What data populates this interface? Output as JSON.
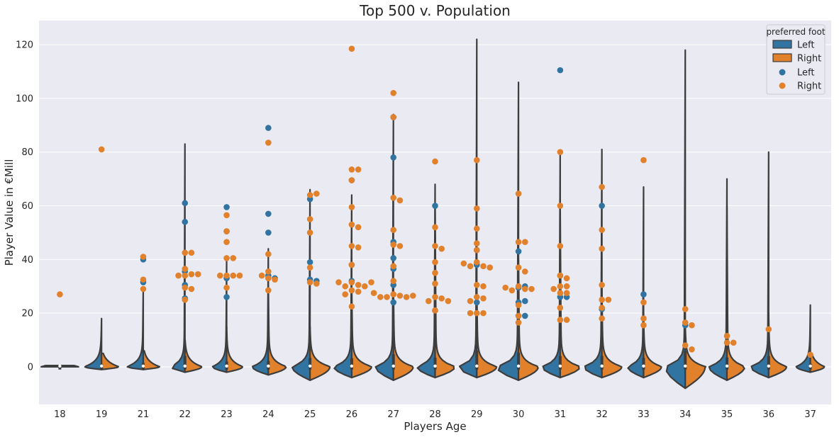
{
  "chart_data": {
    "type": "violin",
    "title": "Top 500 v. Population",
    "xlabel": "Players Age",
    "ylabel": "Player Value in €Mill",
    "categories": [
      "18",
      "19",
      "21",
      "22",
      "23",
      "24",
      "25",
      "26",
      "27",
      "28",
      "29",
      "30",
      "31",
      "32",
      "33",
      "34",
      "35",
      "36",
      "37"
    ],
    "ylim": [
      -14,
      129
    ],
    "yticks": [
      0,
      20,
      40,
      60,
      80,
      100,
      120
    ],
    "grid": true,
    "legend_position": "top-right",
    "legend": {
      "title": "preferred foot",
      "violin_entries": [
        "Left",
        "Right"
      ],
      "point_entries": [
        "Left",
        "Right"
      ]
    },
    "colors": {
      "Left": "#3274a1",
      "Right": "#e1812c",
      "background": "#eaeaf2",
      "grid": "#ffffff",
      "violin_edge": "#3d3d3d"
    },
    "violins": [
      {
        "age": "18",
        "left_max": 0.5,
        "right_max": 0.5,
        "left_w": 0.45,
        "right_w": 0.45,
        "bottom": 0
      },
      {
        "age": "19",
        "left_max": 18,
        "right_max": 5,
        "left_w": 0.42,
        "right_w": 0.42,
        "bottom": -1
      },
      {
        "age": "21",
        "left_max": 29,
        "right_max": 6,
        "left_w": 0.4,
        "right_w": 0.4,
        "bottom": -1
      },
      {
        "age": "22",
        "left_max": 83,
        "right_max": 10,
        "left_w": 0.35,
        "right_w": 0.42,
        "bottom": -2
      },
      {
        "age": "23",
        "left_max": 40,
        "right_max": 15,
        "left_w": 0.35,
        "right_w": 0.4,
        "bottom": -2
      },
      {
        "age": "24",
        "left_max": 44,
        "right_max": 30,
        "left_w": 0.4,
        "right_w": 0.45,
        "bottom": -3
      },
      {
        "age": "25",
        "left_max": 66,
        "right_max": 15,
        "left_w": 0.45,
        "right_w": 0.5,
        "bottom": -5
      },
      {
        "age": "26",
        "left_max": 64,
        "right_max": 30,
        "left_w": 0.45,
        "right_w": 0.5,
        "bottom": -4
      },
      {
        "age": "27",
        "left_max": 94,
        "right_max": 30,
        "left_w": 0.45,
        "right_w": 0.5,
        "bottom": -5
      },
      {
        "age": "28",
        "left_max": 68,
        "right_max": 60,
        "left_w": 0.45,
        "right_w": 0.5,
        "bottom": -4
      },
      {
        "age": "29",
        "left_max": 122,
        "right_max": 30,
        "left_w": 0.45,
        "right_w": 0.5,
        "bottom": -4
      },
      {
        "age": "30",
        "left_max": 106,
        "right_max": 40,
        "left_w": 0.55,
        "right_w": 0.5,
        "bottom": -5
      },
      {
        "age": "31",
        "left_max": 80,
        "right_max": 60,
        "left_w": 0.45,
        "right_w": 0.5,
        "bottom": -4
      },
      {
        "age": "32",
        "left_max": 81,
        "right_max": 30,
        "left_w": 0.45,
        "right_w": 0.5,
        "bottom": -4
      },
      {
        "age": "33",
        "left_max": 67,
        "right_max": 20,
        "left_w": 0.4,
        "right_w": 0.45,
        "bottom": -4
      },
      {
        "age": "34",
        "left_max": 118,
        "right_max": 15,
        "left_w": 0.5,
        "right_w": 0.5,
        "bottom": -8
      },
      {
        "age": "35",
        "left_max": 70,
        "right_max": 60,
        "left_w": 0.45,
        "right_w": 0.45,
        "bottom": -5
      },
      {
        "age": "36",
        "left_max": 80,
        "right_max": 20,
        "left_w": 0.45,
        "right_w": 0.45,
        "bottom": -4
      },
      {
        "age": "37",
        "left_max": 23,
        "right_max": 5,
        "left_w": 0.35,
        "right_w": 0.35,
        "bottom": -2
      }
    ],
    "points": [
      {
        "age": "18",
        "foot": "Right",
        "values": [
          27
        ]
      },
      {
        "age": "19",
        "foot": "Right",
        "values": [
          81
        ]
      },
      {
        "age": "21",
        "foot": "Left",
        "values": [
          40,
          31.5
        ]
      },
      {
        "age": "21",
        "foot": "Right",
        "values": [
          41,
          32.5,
          29
        ]
      },
      {
        "age": "22",
        "foot": "Left",
        "values": [
          61,
          54,
          35.5,
          30.5,
          25.5
        ]
      },
      {
        "age": "22",
        "foot": "Right",
        "values": [
          42.5,
          42.5,
          36.5,
          34.5,
          34,
          34,
          34.5,
          29.5,
          29,
          25
        ]
      },
      {
        "age": "23",
        "foot": "Left",
        "values": [
          59.5,
          50.5,
          33,
          26
        ]
      },
      {
        "age": "23",
        "foot": "Right",
        "values": [
          56.5,
          50.5,
          46.5,
          40.5,
          40.5,
          34,
          34,
          34,
          34,
          29.5
        ]
      },
      {
        "age": "24",
        "foot": "Left",
        "values": [
          89,
          57,
          50,
          34,
          33
        ]
      },
      {
        "age": "24",
        "foot": "Right",
        "values": [
          83.5,
          42,
          35.5,
          33,
          32.5,
          34,
          28.5
        ]
      },
      {
        "age": "25",
        "foot": "Left",
        "values": [
          62.5,
          39,
          32.5,
          32
        ]
      },
      {
        "age": "25",
        "foot": "Right",
        "values": [
          64,
          64.5,
          55,
          50,
          37,
          31.5,
          31
        ]
      },
      {
        "age": "26",
        "foot": "Left",
        "values": [
          69.5,
          38,
          32
        ]
      },
      {
        "age": "26",
        "foot": "Right",
        "values": [
          118.5,
          73.5,
          73.5,
          69.5,
          59.5,
          53,
          52,
          45,
          44.5,
          38,
          31.5,
          30.5,
          30,
          30,
          31.5,
          31.5,
          28.5,
          28,
          27,
          22.5
        ]
      },
      {
        "age": "27",
        "foot": "Left",
        "values": [
          93,
          78,
          46.5,
          40.5,
          36.5,
          30.5,
          24
        ]
      },
      {
        "age": "27",
        "foot": "Right",
        "values": [
          102,
          93,
          63,
          62,
          51,
          45.5,
          45,
          37.5,
          32,
          27,
          26.5,
          26,
          26,
          26,
          26.5,
          27.5
        ]
      },
      {
        "age": "28",
        "foot": "Left",
        "values": [
          60,
          21
        ]
      },
      {
        "age": "28",
        "foot": "Right",
        "values": [
          76.5,
          52,
          45,
          44,
          39,
          35,
          31,
          26,
          25.5,
          24.5,
          24.5,
          21
        ]
      },
      {
        "age": "29",
        "foot": "Left",
        "values": [
          43.5,
          38,
          24
        ]
      },
      {
        "age": "29",
        "foot": "Right",
        "values": [
          77,
          59,
          51.5,
          46,
          43.5,
          39,
          37.5,
          37.5,
          37,
          38.5,
          30.5,
          30,
          26,
          25.5,
          24.5,
          20,
          20,
          20
        ]
      },
      {
        "age": "30",
        "foot": "Left",
        "values": [
          43,
          29.5,
          24,
          24.5,
          30,
          19,
          19
        ]
      },
      {
        "age": "30",
        "foot": "Right",
        "values": [
          64.5,
          46.5,
          46.5,
          37,
          35.5,
          30,
          29,
          28.5,
          29,
          29.5,
          23,
          19,
          16.5
        ]
      },
      {
        "age": "31",
        "foot": "Left",
        "values": [
          110.5,
          34,
          26,
          26
        ]
      },
      {
        "age": "31",
        "foot": "Right",
        "values": [
          80,
          60,
          45,
          34,
          33,
          30,
          30,
          27.5,
          27.5,
          22,
          17.5,
          17.5,
          29
        ]
      },
      {
        "age": "32",
        "foot": "Left",
        "values": [
          60,
          21.5
        ]
      },
      {
        "age": "32",
        "foot": "Right",
        "values": [
          67,
          51,
          44,
          30.5,
          25,
          25,
          22,
          18
        ]
      },
      {
        "age": "33",
        "foot": "Left",
        "values": [
          27
        ]
      },
      {
        "age": "33",
        "foot": "Right",
        "values": [
          77,
          24,
          18,
          15.5
        ]
      },
      {
        "age": "34",
        "foot": "Left",
        "values": [
          15.5
        ]
      },
      {
        "age": "34",
        "foot": "Right",
        "values": [
          21.5,
          16.5,
          15.5,
          8,
          6.5
        ]
      },
      {
        "age": "35",
        "foot": "Right",
        "values": [
          11.5,
          9,
          9
        ]
      },
      {
        "age": "36",
        "foot": "Right",
        "values": [
          14
        ]
      },
      {
        "age": "37",
        "foot": "Right",
        "values": [
          4.5
        ]
      }
    ]
  }
}
